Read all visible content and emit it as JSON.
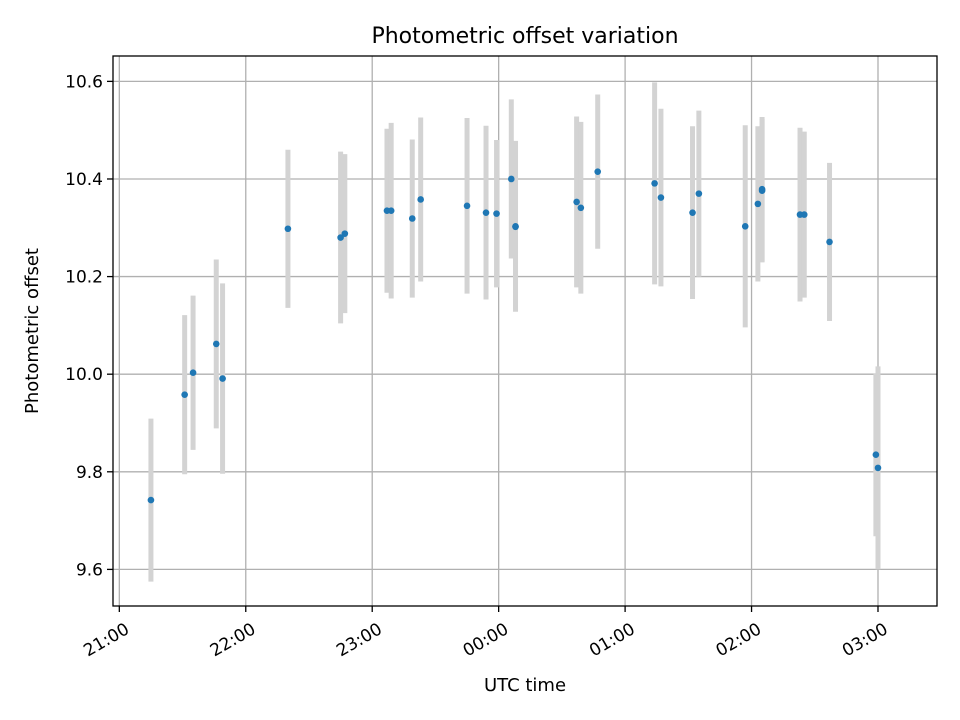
{
  "chart_data": {
    "type": "scatter",
    "title": "Photometric offset variation",
    "xlabel": "UTC time",
    "ylabel": "Photometric offset",
    "grid": true,
    "colors": {
      "points": "#1f77b4",
      "errorbars": "#d3d3d3",
      "grid": "#b0b0b0"
    },
    "xlim": [
      "20:57",
      "03:28"
    ],
    "ylim": [
      9.525,
      10.652
    ],
    "xticks": [
      "21:00",
      "22:00",
      "23:00",
      "00:00",
      "01:00",
      "02:00",
      "03:00"
    ],
    "yticks": [
      "9.6",
      "9.8",
      "10.0",
      "10.2",
      "10.4",
      "10.6"
    ],
    "series": [
      {
        "values": [
          {
            "x": "21:15",
            "y": 9.742,
            "err": 0.167
          },
          {
            "x": "21:31",
            "y": 9.958,
            "err": 0.163
          },
          {
            "x": "21:35",
            "y": 10.003,
            "err": 0.158
          },
          {
            "x": "21:46",
            "y": 10.062,
            "err": 0.173
          },
          {
            "x": "21:49",
            "y": 9.991,
            "err": 0.195
          },
          {
            "x": "22:20",
            "y": 10.298,
            "err": 0.162
          },
          {
            "x": "22:45",
            "y": 10.28,
            "err": 0.176
          },
          {
            "x": "22:47",
            "y": 10.288,
            "err": 0.163
          },
          {
            "x": "23:07",
            "y": 10.335,
            "err": 0.168
          },
          {
            "x": "23:09",
            "y": 10.335,
            "err": 0.18
          },
          {
            "x": "23:19",
            "y": 10.319,
            "err": 0.162
          },
          {
            "x": "23:23",
            "y": 10.358,
            "err": 0.168
          },
          {
            "x": "23:45",
            "y": 10.345,
            "err": 0.18
          },
          {
            "x": "23:54",
            "y": 10.331,
            "err": 0.178
          },
          {
            "x": "23:59",
            "y": 10.329,
            "err": 0.151
          },
          {
            "x": "00:06",
            "y": 10.4,
            "err": 0.163
          },
          {
            "x": "00:08",
            "y": 10.303,
            "err": 0.175
          },
          {
            "x": "00:08",
            "y": 10.302,
            "err": 0.168
          },
          {
            "x": "00:37",
            "y": 10.353,
            "err": 0.175
          },
          {
            "x": "00:39",
            "y": 10.341,
            "err": 0.176
          },
          {
            "x": "00:47",
            "y": 10.415,
            "err": 0.158
          },
          {
            "x": "01:14",
            "y": 10.391,
            "err": 0.207
          },
          {
            "x": "01:17",
            "y": 10.362,
            "err": 0.182
          },
          {
            "x": "01:32",
            "y": 10.331,
            "err": 0.177
          },
          {
            "x": "01:35",
            "y": 10.37,
            "err": 0.17
          },
          {
            "x": "01:57",
            "y": 10.303,
            "err": 0.207
          },
          {
            "x": "02:03",
            "y": 10.349,
            "err": 0.159
          },
          {
            "x": "02:05",
            "y": 10.376,
            "err": 0.147
          },
          {
            "x": "02:05",
            "y": 10.379,
            "err": 0.148
          },
          {
            "x": "02:23",
            "y": 10.327,
            "err": 0.178
          },
          {
            "x": "02:25",
            "y": 10.327,
            "err": 0.17
          },
          {
            "x": "02:37",
            "y": 10.271,
            "err": 0.162
          },
          {
            "x": "02:59",
            "y": 9.835,
            "err": 0.167
          },
          {
            "x": "03:00",
            "y": 9.808,
            "err": 0.208
          }
        ]
      }
    ]
  }
}
